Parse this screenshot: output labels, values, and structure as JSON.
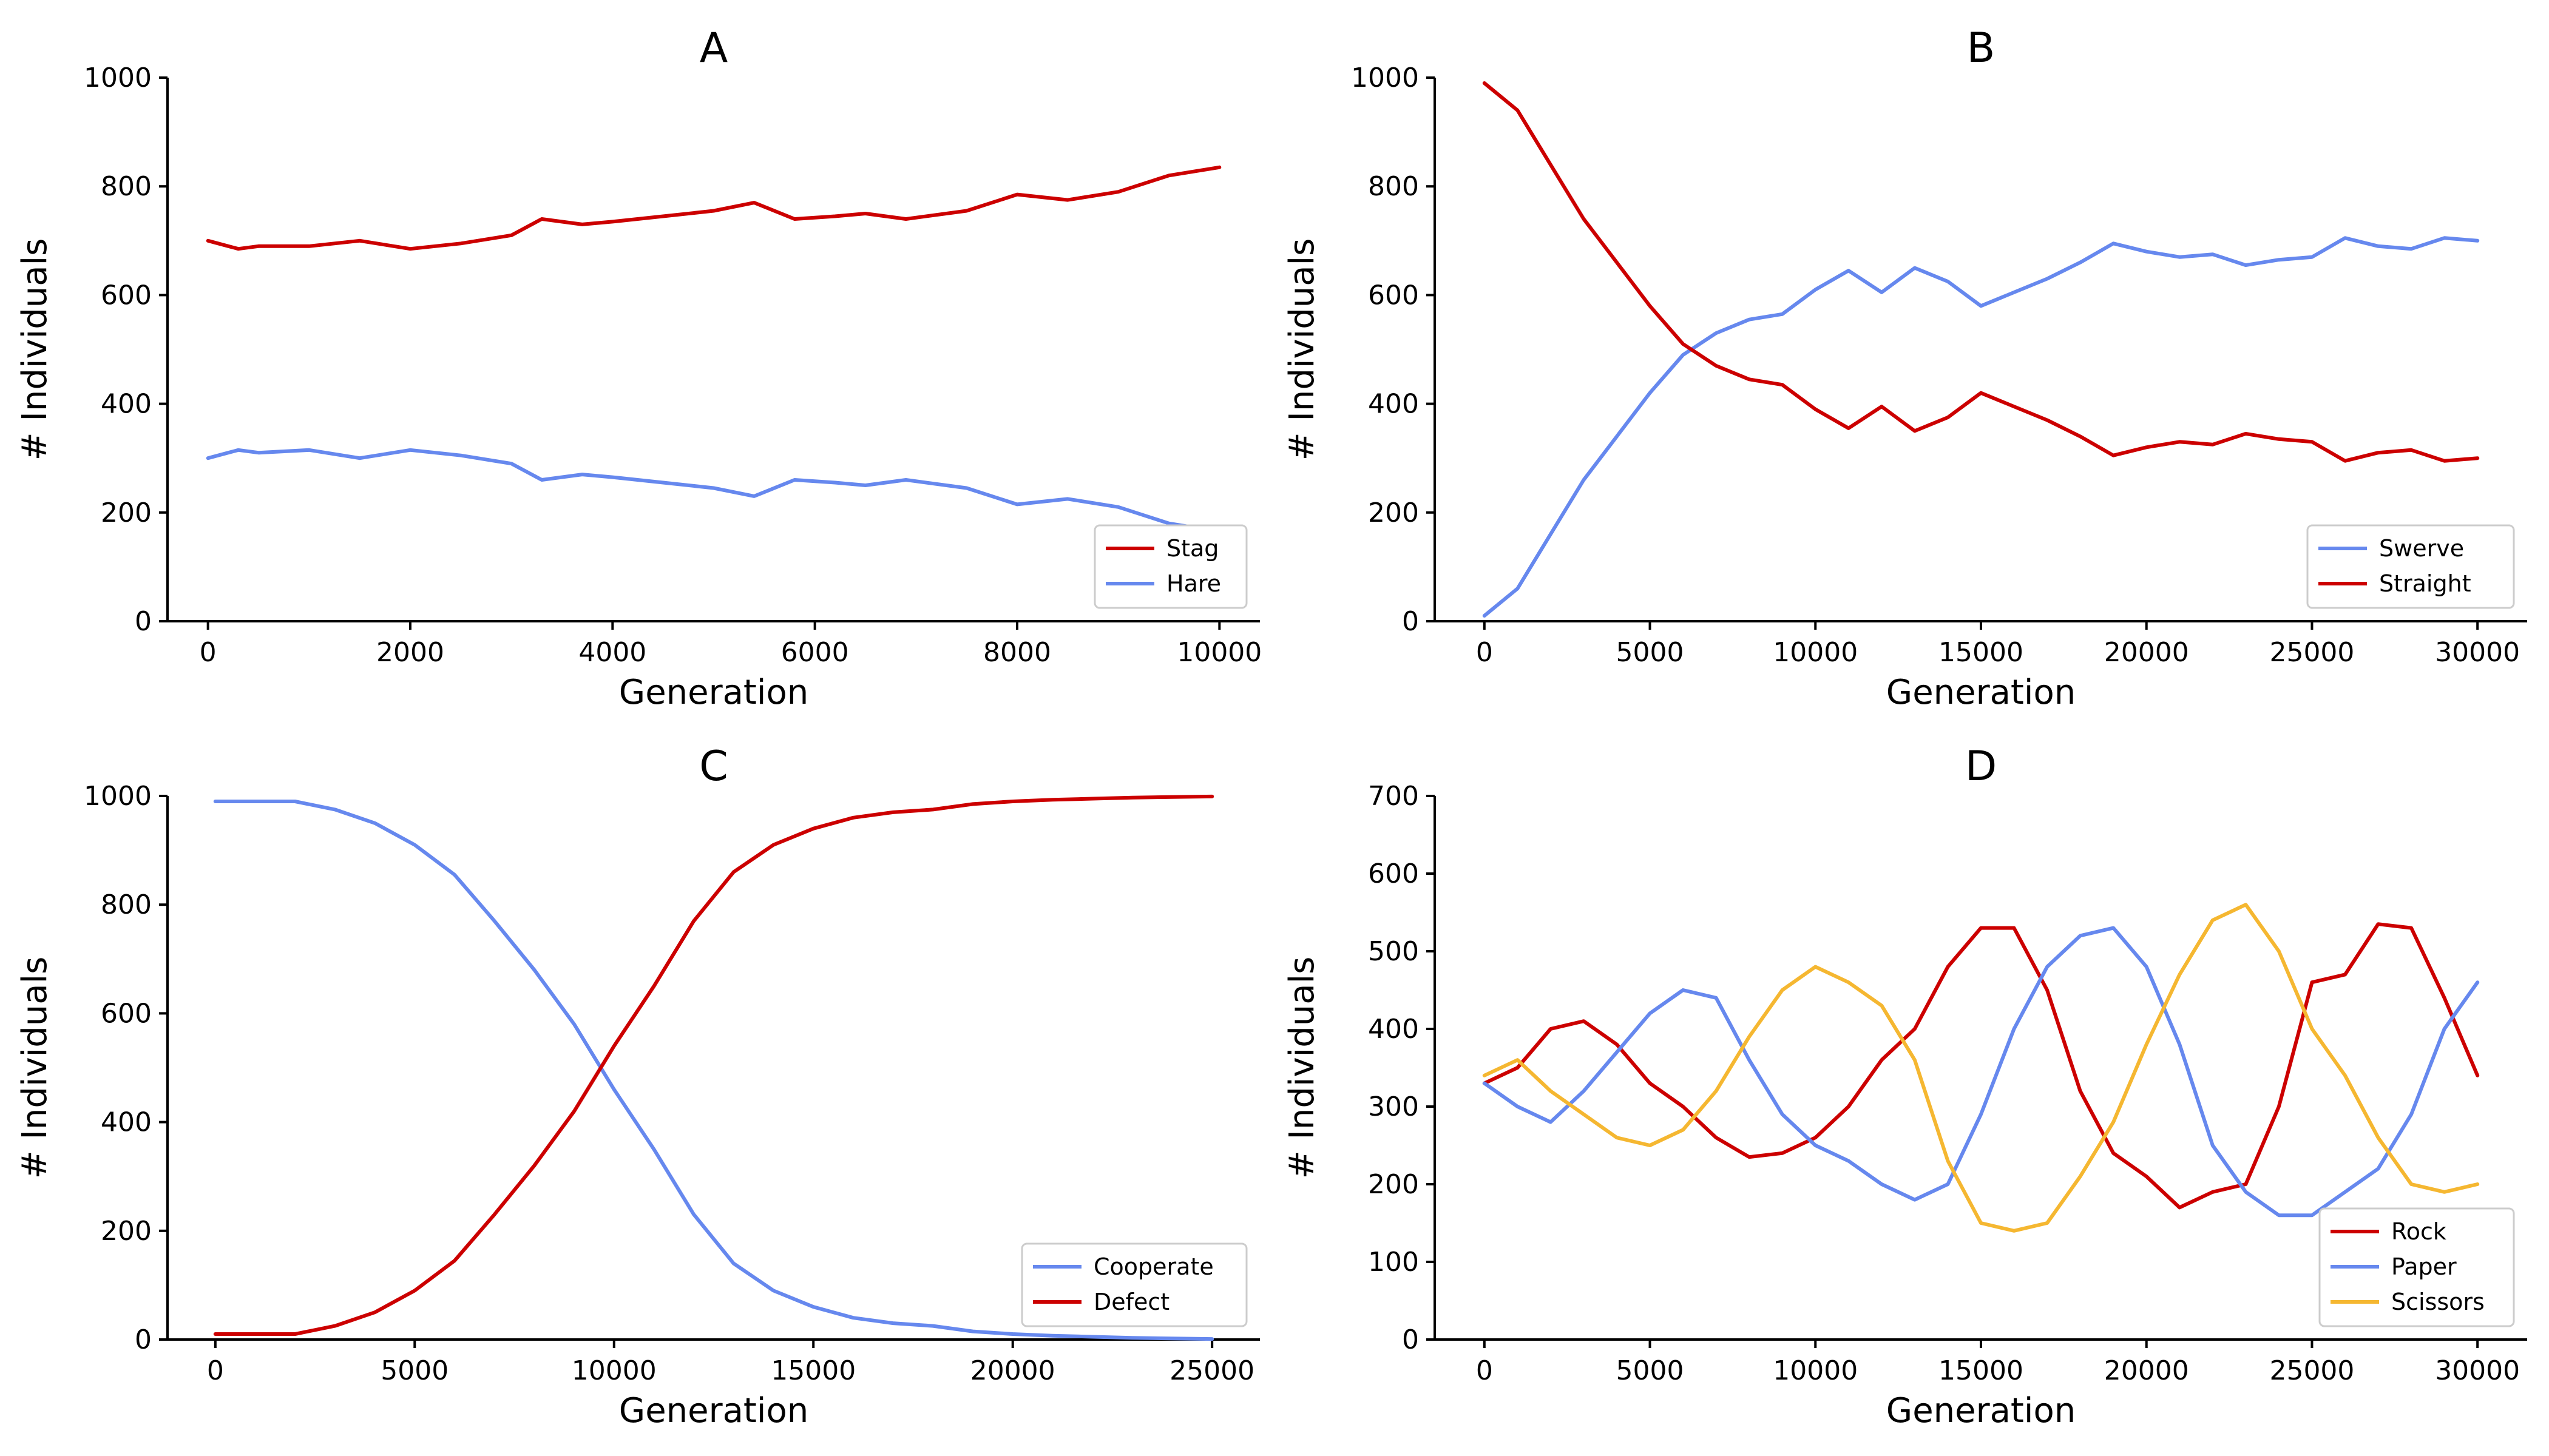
{
  "colors": {
    "red": "#cc0000",
    "blue": "#6688ee",
    "yellow": "#f5b731"
  },
  "chart_data": [
    {
      "type": "line",
      "title": "A",
      "xlabel": "Generation",
      "ylabel": "# Individuals",
      "xlim": [
        -400,
        10400
      ],
      "ylim": [
        0,
        1000
      ],
      "xticks": [
        0,
        2000,
        4000,
        6000,
        8000,
        10000
      ],
      "yticks": [
        0,
        200,
        400,
        600,
        800,
        1000
      ],
      "legend": "lower-right",
      "series": [
        {
          "name": "Stag",
          "color": "#cc0000",
          "x": [
            0,
            300,
            500,
            1000,
            1500,
            2000,
            2500,
            3000,
            3300,
            3700,
            4000,
            4500,
            5000,
            5400,
            5800,
            6200,
            6500,
            6900,
            7500,
            8000,
            8500,
            9000,
            9500,
            10000
          ],
          "y": [
            700,
            685,
            690,
            690,
            700,
            685,
            695,
            710,
            740,
            730,
            735,
            745,
            755,
            770,
            740,
            745,
            750,
            740,
            755,
            785,
            775,
            790,
            820,
            835
          ]
        },
        {
          "name": "Hare",
          "color": "#6688ee",
          "x": [
            0,
            300,
            500,
            1000,
            1500,
            2000,
            2500,
            3000,
            3300,
            3700,
            4000,
            4500,
            5000,
            5400,
            5800,
            6200,
            6500,
            6900,
            7500,
            8000,
            8500,
            9000,
            9500,
            10000
          ],
          "y": [
            300,
            315,
            310,
            315,
            300,
            315,
            305,
            290,
            260,
            270,
            265,
            255,
            245,
            230,
            260,
            255,
            250,
            260,
            245,
            215,
            225,
            210,
            180,
            165
          ]
        }
      ]
    },
    {
      "type": "line",
      "title": "B",
      "xlabel": "Generation",
      "ylabel": "# Individuals",
      "xlim": [
        -1500,
        31500
      ],
      "ylim": [
        0,
        1000
      ],
      "xticks": [
        0,
        5000,
        10000,
        15000,
        20000,
        25000,
        30000
      ],
      "yticks": [
        0,
        200,
        400,
        600,
        800,
        1000
      ],
      "legend": "lower-right",
      "series": [
        {
          "name": "Swerve",
          "color": "#6688ee",
          "x": [
            0,
            1000,
            2000,
            3000,
            4000,
            5000,
            6000,
            7000,
            8000,
            9000,
            10000,
            11000,
            12000,
            13000,
            14000,
            15000,
            16000,
            17000,
            18000,
            19000,
            20000,
            21000,
            22000,
            23000,
            24000,
            25000,
            26000,
            27000,
            28000,
            29000,
            30000
          ],
          "y": [
            10,
            60,
            160,
            260,
            340,
            420,
            490,
            530,
            555,
            565,
            610,
            645,
            605,
            650,
            625,
            580,
            605,
            630,
            660,
            695,
            680,
            670,
            675,
            655,
            665,
            670,
            705,
            690,
            685,
            705,
            700
          ]
        },
        {
          "name": "Straight",
          "color": "#cc0000",
          "x": [
            0,
            1000,
            2000,
            3000,
            4000,
            5000,
            6000,
            7000,
            8000,
            9000,
            10000,
            11000,
            12000,
            13000,
            14000,
            15000,
            16000,
            17000,
            18000,
            19000,
            20000,
            21000,
            22000,
            23000,
            24000,
            25000,
            26000,
            27000,
            28000,
            29000,
            30000
          ],
          "y": [
            990,
            940,
            840,
            740,
            660,
            580,
            510,
            470,
            445,
            435,
            390,
            355,
            395,
            350,
            375,
            420,
            395,
            370,
            340,
            305,
            320,
            330,
            325,
            345,
            335,
            330,
            295,
            310,
            315,
            295,
            300
          ]
        }
      ]
    },
    {
      "type": "line",
      "title": "C",
      "xlabel": "Generation",
      "ylabel": "# Individuals",
      "xlim": [
        -1200,
        26200
      ],
      "ylim": [
        0,
        1000
      ],
      "xticks": [
        0,
        5000,
        10000,
        15000,
        20000,
        25000
      ],
      "yticks": [
        0,
        200,
        400,
        600,
        800,
        1000
      ],
      "legend": "lower-right",
      "series": [
        {
          "name": "Cooperate",
          "color": "#6688ee",
          "x": [
            0,
            1000,
            2000,
            3000,
            4000,
            5000,
            6000,
            7000,
            8000,
            9000,
            10000,
            11000,
            12000,
            13000,
            14000,
            15000,
            16000,
            17000,
            18000,
            19000,
            20000,
            21000,
            22000,
            23000,
            24000,
            25000
          ],
          "y": [
            990,
            990,
            990,
            975,
            950,
            910,
            855,
            770,
            680,
            580,
            460,
            350,
            230,
            140,
            90,
            60,
            40,
            30,
            25,
            15,
            10,
            7,
            5,
            3,
            2,
            1
          ]
        },
        {
          "name": "Defect",
          "color": "#cc0000",
          "x": [
            0,
            1000,
            2000,
            3000,
            4000,
            5000,
            6000,
            7000,
            8000,
            9000,
            10000,
            11000,
            12000,
            13000,
            14000,
            15000,
            16000,
            17000,
            18000,
            19000,
            20000,
            21000,
            22000,
            23000,
            24000,
            25000
          ],
          "y": [
            10,
            10,
            10,
            25,
            50,
            90,
            145,
            230,
            320,
            420,
            540,
            650,
            770,
            860,
            910,
            940,
            960,
            970,
            975,
            985,
            990,
            993,
            995,
            997,
            998,
            999
          ]
        }
      ]
    },
    {
      "type": "line",
      "title": "D",
      "xlabel": "Generation",
      "ylabel": "# Individuals",
      "xlim": [
        -1500,
        31500
      ],
      "ylim": [
        0,
        700
      ],
      "xticks": [
        0,
        5000,
        10000,
        15000,
        20000,
        25000,
        30000
      ],
      "yticks": [
        0,
        100,
        200,
        300,
        400,
        500,
        600,
        700
      ],
      "legend": "lower-right",
      "series": [
        {
          "name": "Rock",
          "color": "#cc0000",
          "x": [
            0,
            1000,
            2000,
            3000,
            4000,
            5000,
            6000,
            7000,
            8000,
            9000,
            10000,
            11000,
            12000,
            13000,
            14000,
            15000,
            16000,
            17000,
            18000,
            19000,
            20000,
            21000,
            22000,
            23000,
            24000,
            25000,
            26000,
            27000,
            28000,
            29000,
            30000
          ],
          "y": [
            330,
            350,
            400,
            410,
            380,
            330,
            300,
            260,
            235,
            240,
            260,
            300,
            360,
            400,
            480,
            530,
            530,
            450,
            320,
            240,
            210,
            170,
            190,
            200,
            300,
            460,
            470,
            535,
            530,
            440,
            340
          ]
        },
        {
          "name": "Paper",
          "color": "#6688ee",
          "x": [
            0,
            1000,
            2000,
            3000,
            4000,
            5000,
            6000,
            7000,
            8000,
            9000,
            10000,
            11000,
            12000,
            13000,
            14000,
            15000,
            16000,
            17000,
            18000,
            19000,
            20000,
            21000,
            22000,
            23000,
            24000,
            25000,
            26000,
            27000,
            28000,
            29000,
            30000
          ],
          "y": [
            330,
            300,
            280,
            320,
            370,
            420,
            450,
            440,
            360,
            290,
            250,
            230,
            200,
            180,
            200,
            290,
            400,
            480,
            520,
            530,
            480,
            380,
            250,
            190,
            160,
            160,
            190,
            220,
            290,
            400,
            460
          ]
        },
        {
          "name": "Scissors",
          "color": "#f5b731",
          "x": [
            0,
            1000,
            2000,
            3000,
            4000,
            5000,
            6000,
            7000,
            8000,
            9000,
            10000,
            11000,
            12000,
            13000,
            14000,
            15000,
            16000,
            17000,
            18000,
            19000,
            20000,
            21000,
            22000,
            23000,
            24000,
            25000,
            26000,
            27000,
            28000,
            29000,
            30000
          ],
          "y": [
            340,
            360,
            320,
            290,
            260,
            250,
            270,
            320,
            390,
            450,
            480,
            460,
            430,
            360,
            230,
            150,
            140,
            150,
            210,
            280,
            380,
            470,
            540,
            560,
            500,
            400,
            340,
            260,
            200,
            190,
            200
          ]
        }
      ]
    }
  ]
}
